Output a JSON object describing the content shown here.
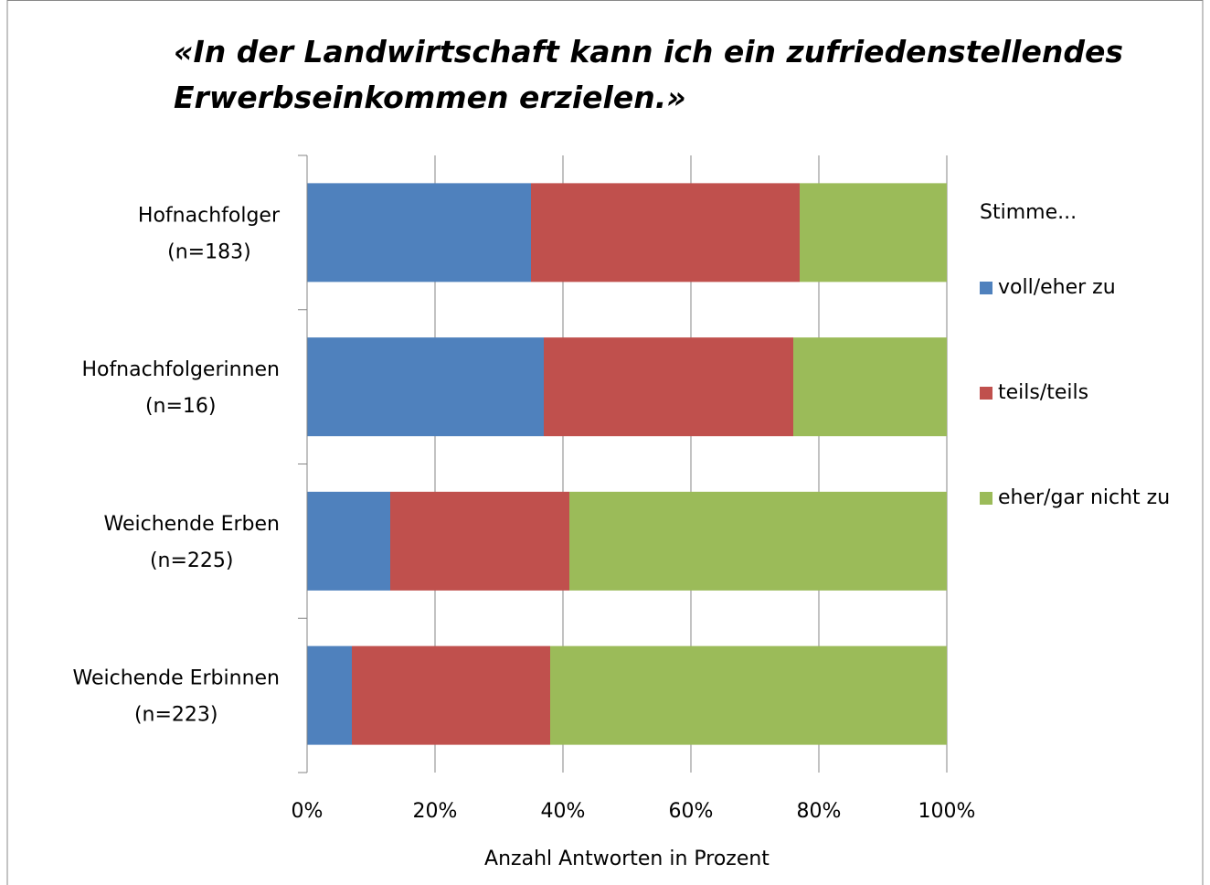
{
  "chart_data": {
    "type": "stacked_bar_horizontal",
    "title": [
      "«In der Landwirtschaft  kann ich ein zufriedenstellendes",
      "Erwerbseinkommen  erzielen.»"
    ],
    "categories": [
      [
        "Hofnachfolger",
        "(n=183)"
      ],
      [
        "Hofnachfolgerinnen",
        "(n=16)"
      ],
      [
        "Weichende Erben",
        "(n=225)"
      ],
      [
        "Weichende Erbinnen",
        "(n=223)"
      ]
    ],
    "series": [
      {
        "name": "voll/eher zu",
        "color": "#4f81bd",
        "values": [
          35,
          37,
          13,
          7
        ]
      },
      {
        "name": "teils/teils",
        "color": "#c0504d",
        "values": [
          42,
          39,
          28,
          31
        ]
      },
      {
        "name": "eher/gar nicht zu",
        "color": "#9bbb59",
        "values": [
          23,
          24,
          59,
          62
        ]
      }
    ],
    "xlabel": "Anzahl Antworten in Prozent",
    "legend_title": "Stimme...",
    "xlim": [
      0,
      100
    ],
    "xticks": [
      {
        "value": 0,
        "label": "0%"
      },
      {
        "value": 20,
        "label": "20%"
      },
      {
        "value": 40,
        "label": "40%"
      },
      {
        "value": 60,
        "label": "60%"
      },
      {
        "value": 80,
        "label": "80%"
      },
      {
        "value": 100,
        "label": "100%"
      }
    ],
    "grid": true,
    "legend": "right"
  }
}
